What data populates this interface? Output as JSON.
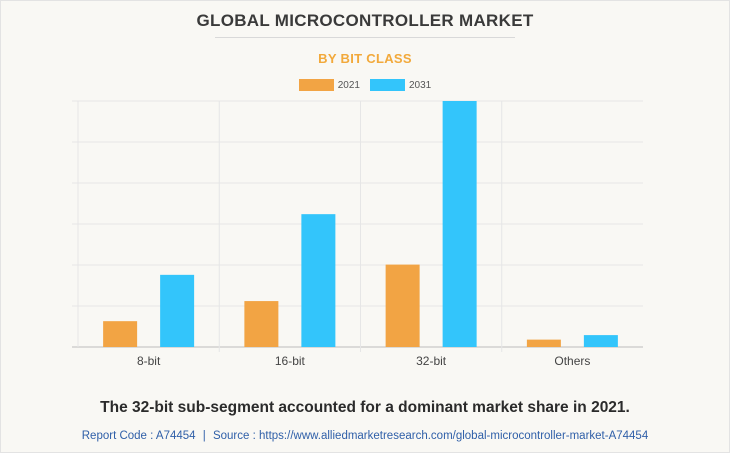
{
  "title": "GLOBAL MICROCONTROLLER MARKET",
  "subtitle": "BY BIT CLASS",
  "caption": "The 32-bit sub-segment accounted for a dominant market share in 2021.",
  "source": {
    "report_code_label": "Report Code : A74454",
    "separator": "|",
    "source_label": "Source : https://www.alliedmarketresearch.com/global-microcontroller-market-A74454"
  },
  "colors": {
    "series_2021": "#f2a444",
    "series_2031": "#33c5fb",
    "grid": "#e6e6e6",
    "axis": "#bdbdbd"
  },
  "chart_data": {
    "type": "bar",
    "categories": [
      "8-bit",
      "16-bit",
      "32-bit",
      "Others"
    ],
    "series": [
      {
        "name": "2021",
        "values": [
          6.3,
          11.2,
          20.1,
          1.8
        ]
      },
      {
        "name": "2031",
        "values": [
          17.6,
          32.4,
          60.0,
          2.9
        ]
      }
    ],
    "ylim": [
      0,
      60
    ],
    "grid": true,
    "legend_position": "top-center",
    "title": "GLOBAL MICROCONTROLLER MARKET",
    "subtitle": "BY BIT CLASS"
  }
}
